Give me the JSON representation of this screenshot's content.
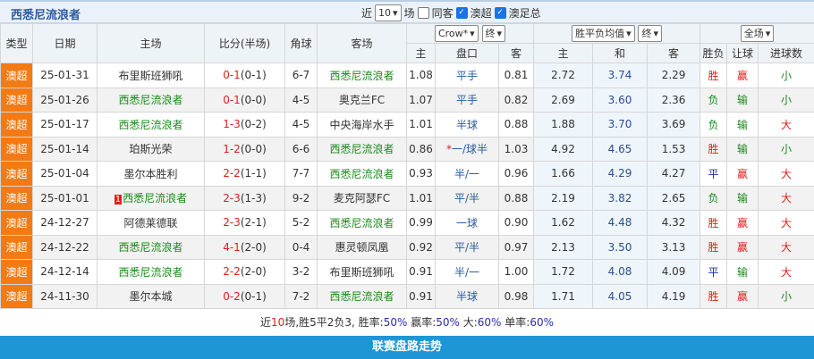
{
  "header": {
    "team": "西悉尼流浪者",
    "recent_label": "近",
    "recent_value": "10",
    "match_label": "场",
    "same_host_label": "同客",
    "filter1_label": "澳超",
    "filter2_label": "澳足总",
    "same_host_checked": false,
    "filter1_checked": true,
    "filter2_checked": true
  },
  "columns": {
    "type": "类型",
    "date": "日期",
    "home": "主场",
    "score": "比分(半场)",
    "corner": "角球",
    "away": "客场",
    "company": "Crow*",
    "hc_time": "终",
    "odds_type": "胜平负均值",
    "odds_time": "终",
    "scope": "全场",
    "sub": [
      "主",
      "盘口",
      "客",
      "主",
      "和",
      "客",
      "胜负",
      "让球",
      "进球数"
    ]
  },
  "rows": [
    {
      "type": "澳超",
      "date": "25-01-31",
      "home": "布里斯班狮吼",
      "home_rank": "",
      "score": "0-1",
      "half": "(0-1)",
      "corner": "6-7",
      "away": "西悉尼流浪者",
      "h": "1.08",
      "hc": "平手",
      "a": "0.81",
      "w": "2.72",
      "d": "3.74",
      "l": "2.29",
      "res": "胜",
      "cover": "赢",
      "ou": "小",
      "team_home": false
    },
    {
      "type": "澳超",
      "date": "25-01-26",
      "home": "西悉尼流浪者",
      "home_rank": "",
      "score": "0-1",
      "half": "(0-0)",
      "corner": "4-5",
      "away": "奥克兰FC",
      "h": "1.07",
      "hc": "平手",
      "a": "0.82",
      "w": "2.69",
      "d": "3.60",
      "l": "2.36",
      "res": "负",
      "cover": "输",
      "ou": "小",
      "team_home": true
    },
    {
      "type": "澳超",
      "date": "25-01-17",
      "home": "西悉尼流浪者",
      "home_rank": "",
      "score": "1-3",
      "half": "(0-2)",
      "corner": "4-5",
      "away": "中央海岸水手",
      "h": "1.01",
      "hc": "半球",
      "a": "0.88",
      "w": "1.88",
      "d": "3.70",
      "l": "3.69",
      "res": "负",
      "cover": "输",
      "ou": "大",
      "team_home": true
    },
    {
      "type": "澳超",
      "date": "25-01-14",
      "home": "珀斯光荣",
      "home_rank": "",
      "score": "1-2",
      "half": "(0-0)",
      "corner": "6-6",
      "away": "西悉尼流浪者",
      "h": "0.86",
      "hc": "一/球半",
      "hc_star": "*",
      "a": "1.03",
      "w": "4.92",
      "d": "4.65",
      "l": "1.53",
      "res": "胜",
      "cover": "输",
      "ou": "小",
      "team_home": false
    },
    {
      "type": "澳超",
      "date": "25-01-04",
      "home": "墨尔本胜利",
      "home_rank": "",
      "score": "2-2",
      "half": "(1-1)",
      "corner": "7-7",
      "away": "西悉尼流浪者",
      "h": "0.93",
      "hc": "半/一",
      "a": "0.96",
      "w": "1.66",
      "d": "4.29",
      "l": "4.27",
      "res": "平",
      "cover": "赢",
      "ou": "大",
      "team_home": false
    },
    {
      "type": "澳超",
      "date": "25-01-01",
      "home": "西悉尼流浪者",
      "home_rank": "1",
      "score": "2-3",
      "half": "(1-3)",
      "corner": "9-2",
      "away": "麦克阿瑟FC",
      "h": "1.01",
      "hc": "平/半",
      "a": "0.88",
      "w": "2.19",
      "d": "3.82",
      "l": "2.65",
      "res": "负",
      "cover": "输",
      "ou": "大",
      "team_home": true
    },
    {
      "type": "澳超",
      "date": "24-12-27",
      "home": "阿德莱德联",
      "home_rank": "",
      "score": "2-3",
      "half": "(2-1)",
      "corner": "5-2",
      "away": "西悉尼流浪者",
      "h": "0.99",
      "hc": "一球",
      "a": "0.90",
      "w": "1.62",
      "d": "4.48",
      "l": "4.32",
      "res": "胜",
      "cover": "赢",
      "ou": "大",
      "team_home": false
    },
    {
      "type": "澳超",
      "date": "24-12-22",
      "home": "西悉尼流浪者",
      "home_rank": "",
      "score": "4-1",
      "half": "(2-0)",
      "corner": "0-4",
      "away": "惠灵顿凤凰",
      "h": "0.92",
      "hc": "平/半",
      "a": "0.97",
      "w": "2.13",
      "d": "3.50",
      "l": "3.13",
      "res": "胜",
      "cover": "赢",
      "ou": "大",
      "team_home": true
    },
    {
      "type": "澳超",
      "date": "24-12-14",
      "home": "西悉尼流浪者",
      "home_rank": "",
      "score": "2-2",
      "half": "(2-0)",
      "corner": "3-2",
      "away": "布里斯班狮吼",
      "h": "0.91",
      "hc": "半/一",
      "a": "1.00",
      "w": "1.72",
      "d": "4.08",
      "l": "4.09",
      "res": "平",
      "cover": "输",
      "ou": "大",
      "team_home": true
    },
    {
      "type": "澳超",
      "date": "24-11-30",
      "home": "墨尔本城",
      "home_rank": "",
      "score": "0-2",
      "half": "(0-1)",
      "corner": "7-2",
      "away": "西悉尼流浪者",
      "h": "0.91",
      "hc": "半球",
      "a": "0.98",
      "w": "1.71",
      "d": "4.05",
      "l": "4.19",
      "res": "胜",
      "cover": "赢",
      "ou": "小",
      "team_home": false
    }
  ],
  "summary": {
    "p1": "近",
    "n": "10",
    "p2": "场,胜5平2负3, 胜率:",
    "win": "50%",
    "p3": " 赢率:",
    "cover": "50%",
    "p4": " 大:",
    "over": "60%",
    "p5": " 单率:",
    "odd": "60%"
  },
  "footer": {
    "label": "联赛盘路走势"
  },
  "colors": {
    "accent": "#1e96d6",
    "type_bg": "#f47a14",
    "win": "#e0201c",
    "lose": "#1a8a1a",
    "draw": "#1a2fb0"
  }
}
